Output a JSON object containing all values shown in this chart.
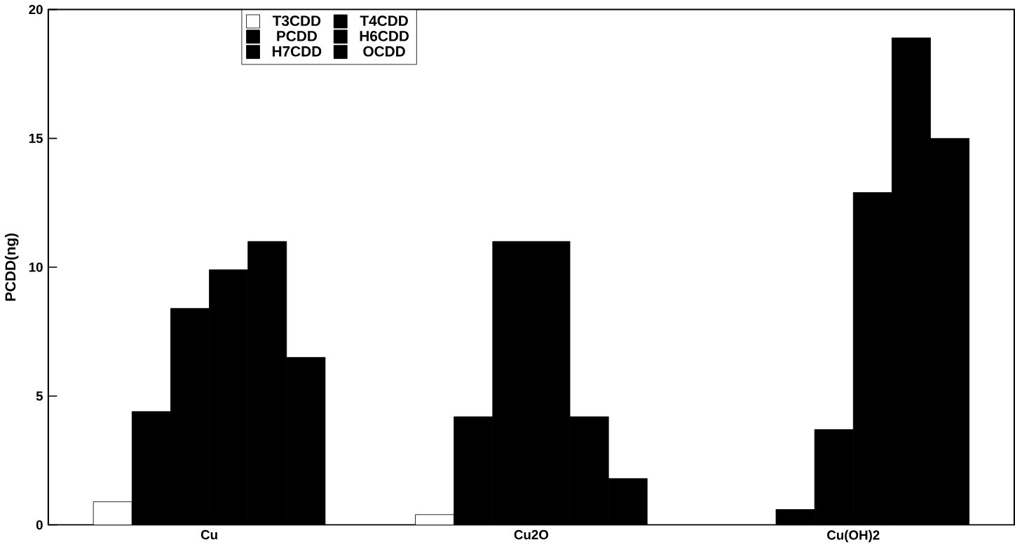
{
  "chart_data": {
    "type": "bar",
    "ylabel": "PCDD(ng)",
    "categories": [
      "Cu",
      "Cu2O",
      "Cu(OH)2"
    ],
    "series": [
      {
        "name": "T3CDD",
        "color": "#ffffff",
        "values": [
          0.9,
          0.4,
          null
        ]
      },
      {
        "name": "T4CDD",
        "color": "#000000",
        "values": [
          4.4,
          4.2,
          0.6
        ]
      },
      {
        "name": "PCDD",
        "color": "#000000",
        "values": [
          8.4,
          11,
          3.7
        ]
      },
      {
        "name": "H6CDD",
        "color": "#000000",
        "values": [
          9.9,
          11,
          12.9
        ]
      },
      {
        "name": "H7CDD",
        "color": "#000000",
        "values": [
          11,
          4.2,
          18.9
        ]
      },
      {
        "name": "OCDD",
        "color": "#000000",
        "values": [
          6.5,
          1.8,
          15
        ]
      }
    ],
    "ylim": [
      0,
      20
    ],
    "yticks": [
      0,
      5,
      10,
      15,
      20
    ],
    "legend": "top left",
    "grid": false
  }
}
